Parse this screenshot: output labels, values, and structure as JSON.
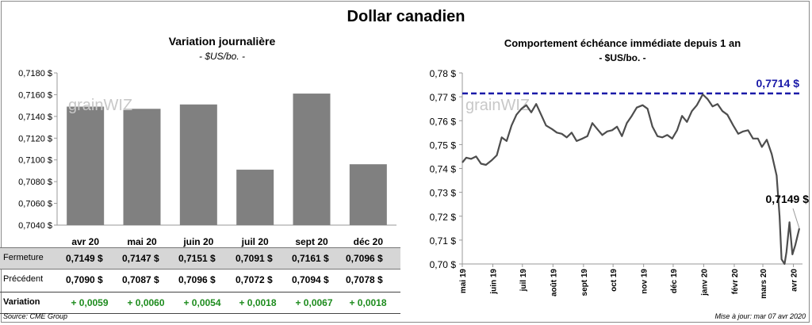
{
  "title": "Dollar canadien",
  "watermark": "grainWIZ",
  "source": "Source: CME Group",
  "updated": "Mise à jour: mar 07 avr 2020",
  "colors": {
    "bar": "#808080",
    "line": "#4d4d4d",
    "ref_line": "#1a1aa8",
    "positive": "#1e8c1e"
  },
  "table": {
    "row_labels": {
      "close": "Fermeture",
      "previous": "Précédent",
      "variation": "Variation"
    },
    "close": [
      "0,7149 $",
      "0,7147 $",
      "0,7151 $",
      "0,7091 $",
      "0,7161 $",
      "0,7096 $"
    ],
    "previous": [
      "0,7090 $",
      "0,7087 $",
      "0,7096 $",
      "0,7072 $",
      "0,7094 $",
      "0,7078 $"
    ],
    "variation": [
      "+ 0,0059",
      "+ 0,0060",
      "+ 0,0054",
      "+ 0,0018",
      "+ 0,0067",
      "+ 0,0018"
    ]
  },
  "chart_data": [
    {
      "type": "bar",
      "title": "Variation  journalière",
      "subtitle": "- $US/bo. -",
      "categories": [
        "avr 20",
        "mai 20",
        "juin 20",
        "juil 20",
        "sept 20",
        "déc 20"
      ],
      "values": [
        0.7149,
        0.7147,
        0.7151,
        0.7091,
        0.7161,
        0.7096
      ],
      "ylim": [
        0.704,
        0.718
      ],
      "yticks": [
        "0,7040 $",
        "0,7060 $",
        "0,7080 $",
        "0,7100 $",
        "0,7120 $",
        "0,7140 $",
        "0,7160 $",
        "0,7180 $"
      ],
      "grid": false
    },
    {
      "type": "line",
      "title": "Comportement échéance immédiate depuis 1 an",
      "subtitle": "- $US/bo. -",
      "ylim": [
        0.7,
        0.78
      ],
      "yticks": [
        "0,70 $",
        "0,71 $",
        "0,72 $",
        "0,73 $",
        "0,74 $",
        "0,75 $",
        "0,76 $",
        "0,77 $",
        "0,78 $"
      ],
      "xticks": [
        "mai 19",
        "juin 19",
        "juil 19",
        "août 19",
        "sept 19",
        "oct 19",
        "nov 19",
        "déc 19",
        "janv 20",
        "févr 20",
        "mars 20",
        "avr 20"
      ],
      "reference_line": {
        "value": 0.7714,
        "label": "0,7714 $"
      },
      "last_label": "0,7149 $",
      "x": [
        "2019-05-01",
        "2019-05-05",
        "2019-05-10",
        "2019-05-15",
        "2019-05-20",
        "2019-05-25",
        "2019-05-31",
        "2019-06-05",
        "2019-06-10",
        "2019-06-15",
        "2019-06-20",
        "2019-06-25",
        "2019-06-30",
        "2019-07-05",
        "2019-07-10",
        "2019-07-15",
        "2019-07-20",
        "2019-07-25",
        "2019-07-31",
        "2019-08-05",
        "2019-08-10",
        "2019-08-15",
        "2019-08-20",
        "2019-08-25",
        "2019-08-31",
        "2019-09-05",
        "2019-09-10",
        "2019-09-15",
        "2019-09-20",
        "2019-09-25",
        "2019-09-30",
        "2019-10-05",
        "2019-10-10",
        "2019-10-15",
        "2019-10-20",
        "2019-10-25",
        "2019-10-31",
        "2019-11-05",
        "2019-11-10",
        "2019-11-15",
        "2019-11-20",
        "2019-11-25",
        "2019-11-30",
        "2019-12-05",
        "2019-12-10",
        "2019-12-15",
        "2019-12-20",
        "2019-12-25",
        "2019-12-31",
        "2020-01-05",
        "2020-01-10",
        "2020-01-15",
        "2020-01-20",
        "2020-01-25",
        "2020-01-31",
        "2020-02-05",
        "2020-02-10",
        "2020-02-15",
        "2020-02-20",
        "2020-02-25",
        "2020-02-29",
        "2020-03-05",
        "2020-03-10",
        "2020-03-15",
        "2020-03-18",
        "2020-03-20",
        "2020-03-23",
        "2020-03-25",
        "2020-03-28",
        "2020-03-31",
        "2020-04-03",
        "2020-04-07"
      ],
      "y": [
        0.7425,
        0.7445,
        0.744,
        0.745,
        0.742,
        0.7415,
        0.7435,
        0.7455,
        0.753,
        0.7515,
        0.758,
        0.7625,
        0.765,
        0.7665,
        0.7635,
        0.767,
        0.7625,
        0.758,
        0.7565,
        0.755,
        0.7545,
        0.753,
        0.755,
        0.7515,
        0.7525,
        0.7535,
        0.759,
        0.7565,
        0.754,
        0.7555,
        0.756,
        0.7575,
        0.7535,
        0.759,
        0.762,
        0.7655,
        0.7665,
        0.765,
        0.7575,
        0.7535,
        0.753,
        0.754,
        0.7525,
        0.756,
        0.762,
        0.7595,
        0.764,
        0.7665,
        0.771,
        0.769,
        0.766,
        0.767,
        0.764,
        0.7625,
        0.758,
        0.7545,
        0.7555,
        0.756,
        0.7525,
        0.7525,
        0.749,
        0.752,
        0.746,
        0.737,
        0.72,
        0.702,
        0.696,
        0.705,
        0.7175,
        0.704,
        0.708,
        0.7149
      ]
    }
  ]
}
